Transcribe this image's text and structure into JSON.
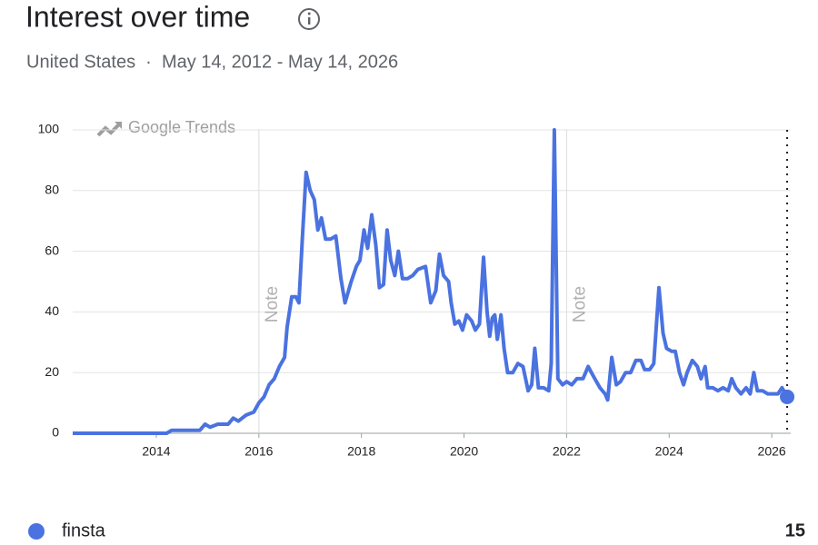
{
  "header": {
    "title": "Interest over time",
    "subtitle": "United States  ·  May 14, 2012 - May 14, 2026"
  },
  "chart_data": {
    "type": "line",
    "watermark": "Google Trends",
    "x": [
      2012.37,
      2014.2,
      2014.3,
      2014.85,
      2014.95,
      2015.05,
      2015.2,
      2015.4,
      2015.5,
      2015.6,
      2015.75,
      2015.9,
      2016.0,
      2016.1,
      2016.2,
      2016.3,
      2016.4,
      2016.5,
      2016.55,
      2016.64,
      2016.72,
      2016.78,
      2016.85,
      2016.92,
      2017.0,
      2017.08,
      2017.15,
      2017.22,
      2017.3,
      2017.4,
      2017.5,
      2017.6,
      2017.68,
      2017.8,
      2017.9,
      2017.97,
      2018.05,
      2018.12,
      2018.2,
      2018.28,
      2018.35,
      2018.43,
      2018.5,
      2018.57,
      2018.65,
      2018.72,
      2018.8,
      2018.9,
      2019.0,
      2019.1,
      2019.25,
      2019.35,
      2019.45,
      2019.52,
      2019.6,
      2019.7,
      2019.75,
      2019.82,
      2019.9,
      2019.97,
      2020.05,
      2020.15,
      2020.22,
      2020.3,
      2020.38,
      2020.45,
      2020.5,
      2020.55,
      2020.6,
      2020.65,
      2020.72,
      2020.78,
      2020.85,
      2020.95,
      2021.05,
      2021.15,
      2021.25,
      2021.32,
      2021.38,
      2021.45,
      2021.55,
      2021.65,
      2021.7,
      2021.76,
      2021.83,
      2021.92,
      2022.0,
      2022.1,
      2022.2,
      2022.32,
      2022.42,
      2022.55,
      2022.65,
      2022.75,
      2022.8,
      2022.88,
      2022.97,
      2023.05,
      2023.15,
      2023.25,
      2023.35,
      2023.45,
      2023.52,
      2023.62,
      2023.7,
      2023.8,
      2023.88,
      2023.95,
      2024.05,
      2024.12,
      2024.2,
      2024.28,
      2024.35,
      2024.45,
      2024.55,
      2024.62,
      2024.7,
      2024.75,
      2024.85,
      2024.95,
      2025.05,
      2025.15,
      2025.22,
      2025.3,
      2025.4,
      2025.5,
      2025.58,
      2025.65,
      2025.72,
      2025.82,
      2025.92,
      2026.05,
      2026.12,
      2026.2,
      2026.3
    ],
    "series": [
      {
        "name": "finsta",
        "color": "#4a72e0",
        "legend_value": 15,
        "values": [
          0,
          0,
          1,
          1,
          3,
          2,
          3,
          3,
          5,
          4,
          6,
          7,
          10,
          12,
          16,
          18,
          22,
          25,
          35,
          45,
          45,
          43,
          65,
          86,
          80,
          77,
          67,
          71,
          64,
          64,
          65,
          51,
          43,
          50,
          55,
          57,
          67,
          61,
          72,
          62,
          48,
          49,
          67,
          57,
          52,
          60,
          51,
          51,
          52,
          54,
          55,
          43,
          47,
          59,
          52,
          50,
          43,
          36,
          37,
          34,
          39,
          37,
          34,
          36,
          58,
          40,
          32,
          38,
          39,
          31,
          39,
          28,
          20,
          20,
          23,
          22,
          14,
          16,
          28,
          15,
          15,
          14,
          23,
          100,
          18,
          16,
          17,
          16,
          18,
          18,
          22,
          18,
          15,
          13,
          11,
          25,
          16,
          17,
          20,
          20,
          24,
          24,
          21,
          21,
          23,
          48,
          33,
          28,
          27,
          27,
          20,
          16,
          20,
          24,
          22,
          18,
          22,
          15,
          15,
          14,
          15,
          14,
          18,
          15,
          13,
          15,
          13,
          20,
          14,
          14,
          13,
          13,
          13,
          15,
          12
        ]
      }
    ],
    "xlim": [
      2012.37,
      2026.37
    ],
    "ylim": [
      0,
      100
    ],
    "xticks": [
      2014,
      2016,
      2018,
      2020,
      2022,
      2024,
      2026
    ],
    "yticks": [
      0,
      20,
      40,
      60,
      80,
      100
    ],
    "grid": true,
    "notes": [
      {
        "x": 2016,
        "label": "Note"
      },
      {
        "x": 2022,
        "label": "Note"
      }
    ]
  }
}
